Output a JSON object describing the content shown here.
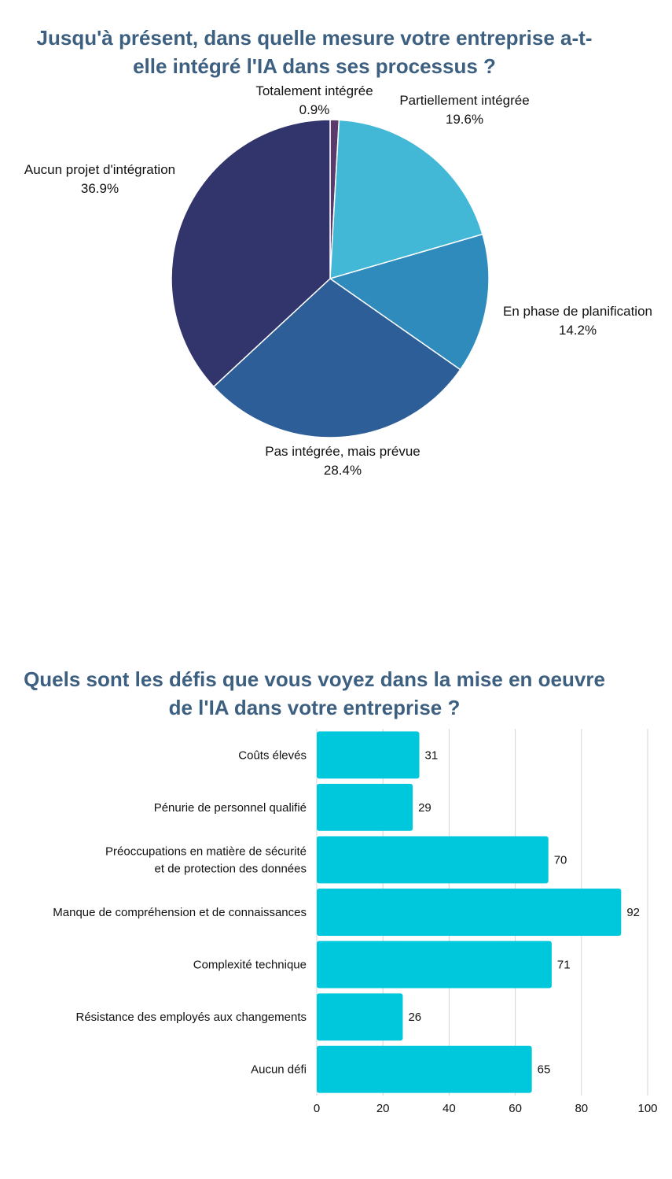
{
  "chart_data": [
    {
      "type": "pie",
      "title_lines": [
        "Jusqu'à présent, dans quelle mesure votre entreprise a-t-",
        "elle intégré l'IA dans ses processus ?"
      ],
      "slices": [
        {
          "label": "Totalement intégrée",
          "value": 0.9,
          "display": "0.9%",
          "color": "#5a3a6a"
        },
        {
          "label": "Partiellement intégrée",
          "value": 19.6,
          "display": "19.6%",
          "color": "#43b8d6"
        },
        {
          "label": "En phase de planification",
          "value": 14.2,
          "display": "14.2%",
          "color": "#2e8bbb"
        },
        {
          "label": "Pas intégrée, mais prévue",
          "value": 28.4,
          "display": "28.4%",
          "color": "#2e5e98"
        },
        {
          "label": "Aucun projet d'intégration",
          "value": 36.9,
          "display": "36.9%",
          "color": "#31356b"
        }
      ],
      "start": "top",
      "direction": "clockwise"
    },
    {
      "type": "bar",
      "orientation": "horizontal",
      "title_lines": [
        "Quels sont les défis que vous voyez dans la mise en oeuvre",
        "de l'IA dans votre entreprise ?"
      ],
      "categories": [
        [
          "Coûts élevés"
        ],
        [
          "Pénurie de personnel qualifié"
        ],
        [
          "Préoccupations en matière de sécurité",
          "et de protection des données"
        ],
        [
          "Manque de compréhension et de connaissances"
        ],
        [
          "Complexité technique"
        ],
        [
          "Résistance des employés aux changements"
        ],
        [
          "Aucun défi"
        ]
      ],
      "values": [
        31,
        29,
        70,
        92,
        71,
        26,
        65
      ],
      "xlim": [
        0,
        100
      ],
      "xticks": [
        "0",
        "20",
        "40",
        "60",
        "80",
        "100"
      ],
      "bar_color": "#00c8dc",
      "grid": true,
      "data_labels": true
    }
  ]
}
